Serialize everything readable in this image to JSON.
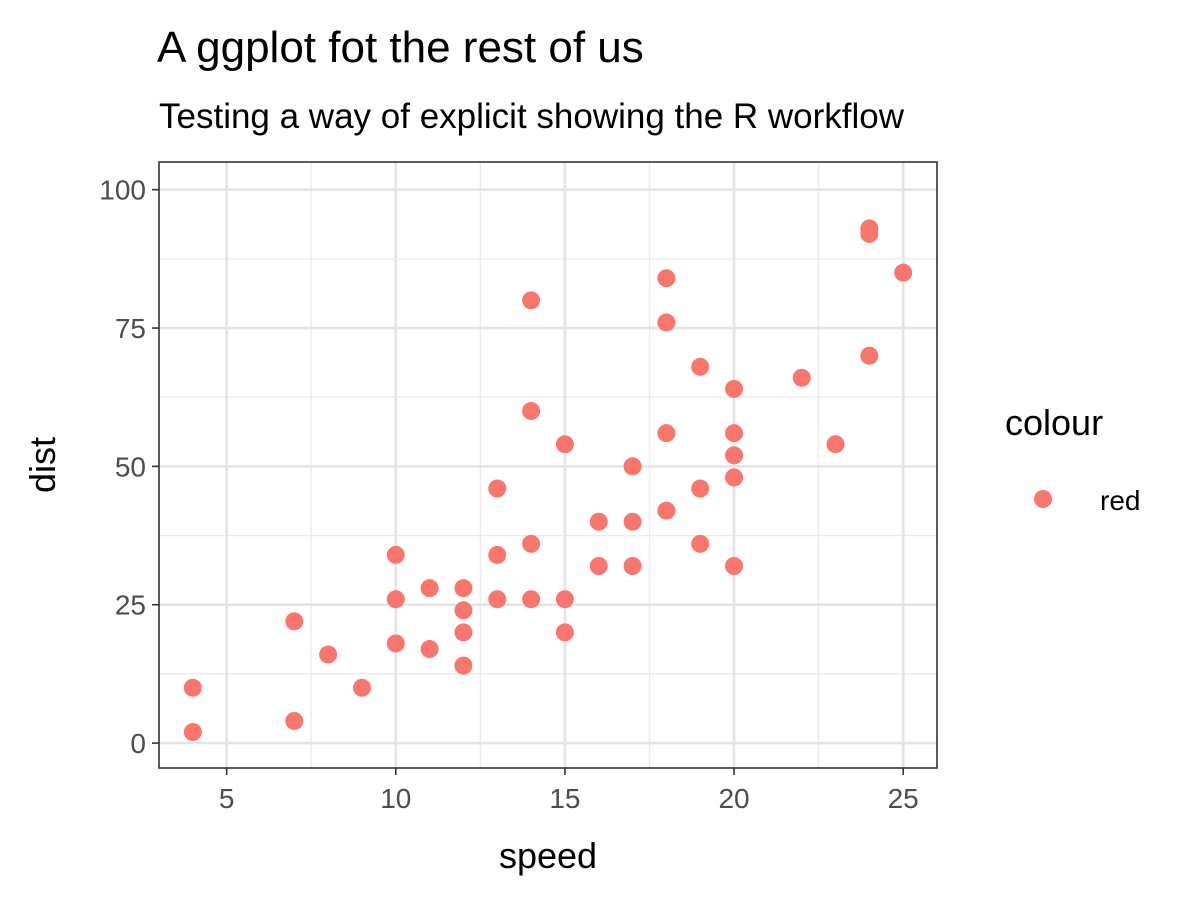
{
  "chart_data": {
    "type": "scatter",
    "title": "A ggplot fot the rest of us",
    "subtitle": "Testing a way of explicit showing the R workflow",
    "xlabel": "speed",
    "ylabel": "dist",
    "xlim": [
      3,
      26
    ],
    "ylim": [
      -4.5,
      105
    ],
    "x_ticks": [
      5,
      10,
      15,
      20,
      25
    ],
    "y_ticks": [
      0,
      25,
      50,
      75,
      100
    ],
    "x_minor": [
      7.5,
      12.5,
      17.5,
      22.5
    ],
    "y_minor": [
      12.5,
      37.5,
      62.5,
      87.5
    ],
    "grid": true,
    "legend": {
      "title": "colour",
      "position": "right",
      "entries": [
        {
          "label": "red",
          "color": "#F8766D"
        }
      ]
    },
    "point_color": "#F8766D",
    "series": [
      {
        "name": "red",
        "points": [
          [
            4,
            2
          ],
          [
            4,
            10
          ],
          [
            7,
            4
          ],
          [
            7,
            22
          ],
          [
            8,
            16
          ],
          [
            9,
            10
          ],
          [
            10,
            18
          ],
          [
            10,
            26
          ],
          [
            10,
            34
          ],
          [
            11,
            17
          ],
          [
            11,
            28
          ],
          [
            12,
            14
          ],
          [
            12,
            20
          ],
          [
            12,
            24
          ],
          [
            12,
            28
          ],
          [
            13,
            26
          ],
          [
            13,
            34
          ],
          [
            13,
            46
          ],
          [
            14,
            26
          ],
          [
            14,
            36
          ],
          [
            14,
            60
          ],
          [
            14,
            80
          ],
          [
            15,
            20
          ],
          [
            15,
            26
          ],
          [
            15,
            54
          ],
          [
            16,
            32
          ],
          [
            16,
            40
          ],
          [
            17,
            32
          ],
          [
            17,
            40
          ],
          [
            17,
            50
          ],
          [
            18,
            42
          ],
          [
            18,
            56
          ],
          [
            18,
            76
          ],
          [
            18,
            84
          ],
          [
            19,
            36
          ],
          [
            19,
            46
          ],
          [
            19,
            68
          ],
          [
            20,
            32
          ],
          [
            20,
            48
          ],
          [
            20,
            52
          ],
          [
            20,
            56
          ],
          [
            20,
            64
          ],
          [
            22,
            66
          ],
          [
            23,
            54
          ],
          [
            24,
            70
          ],
          [
            24,
            92
          ],
          [
            24,
            93
          ],
          [
            25,
            85
          ]
        ]
      }
    ]
  }
}
